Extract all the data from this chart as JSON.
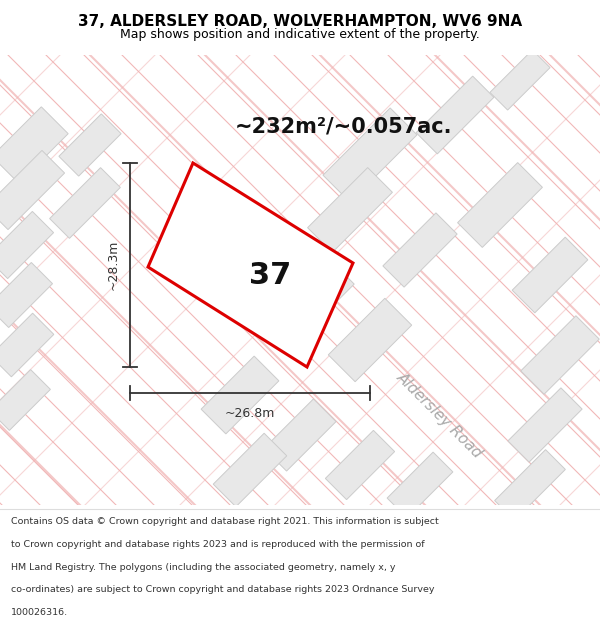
{
  "title_line1": "37, ALDERSLEY ROAD, WOLVERHAMPTON, WV6 9NA",
  "title_line2": "Map shows position and indicative extent of the property.",
  "footer_lines": [
    "Contains OS data © Crown copyright and database right 2021. This information is subject",
    "to Crown copyright and database rights 2023 and is reproduced with the permission of",
    "HM Land Registry. The polygons (including the associated geometry, namely x, y",
    "co-ordinates) are subject to Crown copyright and database rights 2023 Ordnance Survey",
    "100026316."
  ],
  "area_label": "~232m²/~0.057ac.",
  "plot_number": "37",
  "dim_width": "~26.8m",
  "dim_height": "~28.3m",
  "road_label": "Aldersley Road",
  "map_bg": "#ffffff",
  "title_bg": "#ffffff",
  "footer_bg": "#ffffff",
  "plot_edge": "#dd0000",
  "plot_fill": "none",
  "plot_linewidth": 2.2,
  "road_line_color": "#f0b0b0",
  "building_fill": "#e8e8e8",
  "building_edge": "#cccccc",
  "dim_line_color": "#333333",
  "road_label_color": "#aaaaaa",
  "area_label_color": "#111111",
  "plot_number_color": "#111111",
  "title_fontsize": 11,
  "subtitle_fontsize": 9,
  "area_fontsize": 15,
  "plot_num_fontsize": 22,
  "road_label_fontsize": 11,
  "dim_fontsize": 9,
  "footer_fontsize": 6.8
}
